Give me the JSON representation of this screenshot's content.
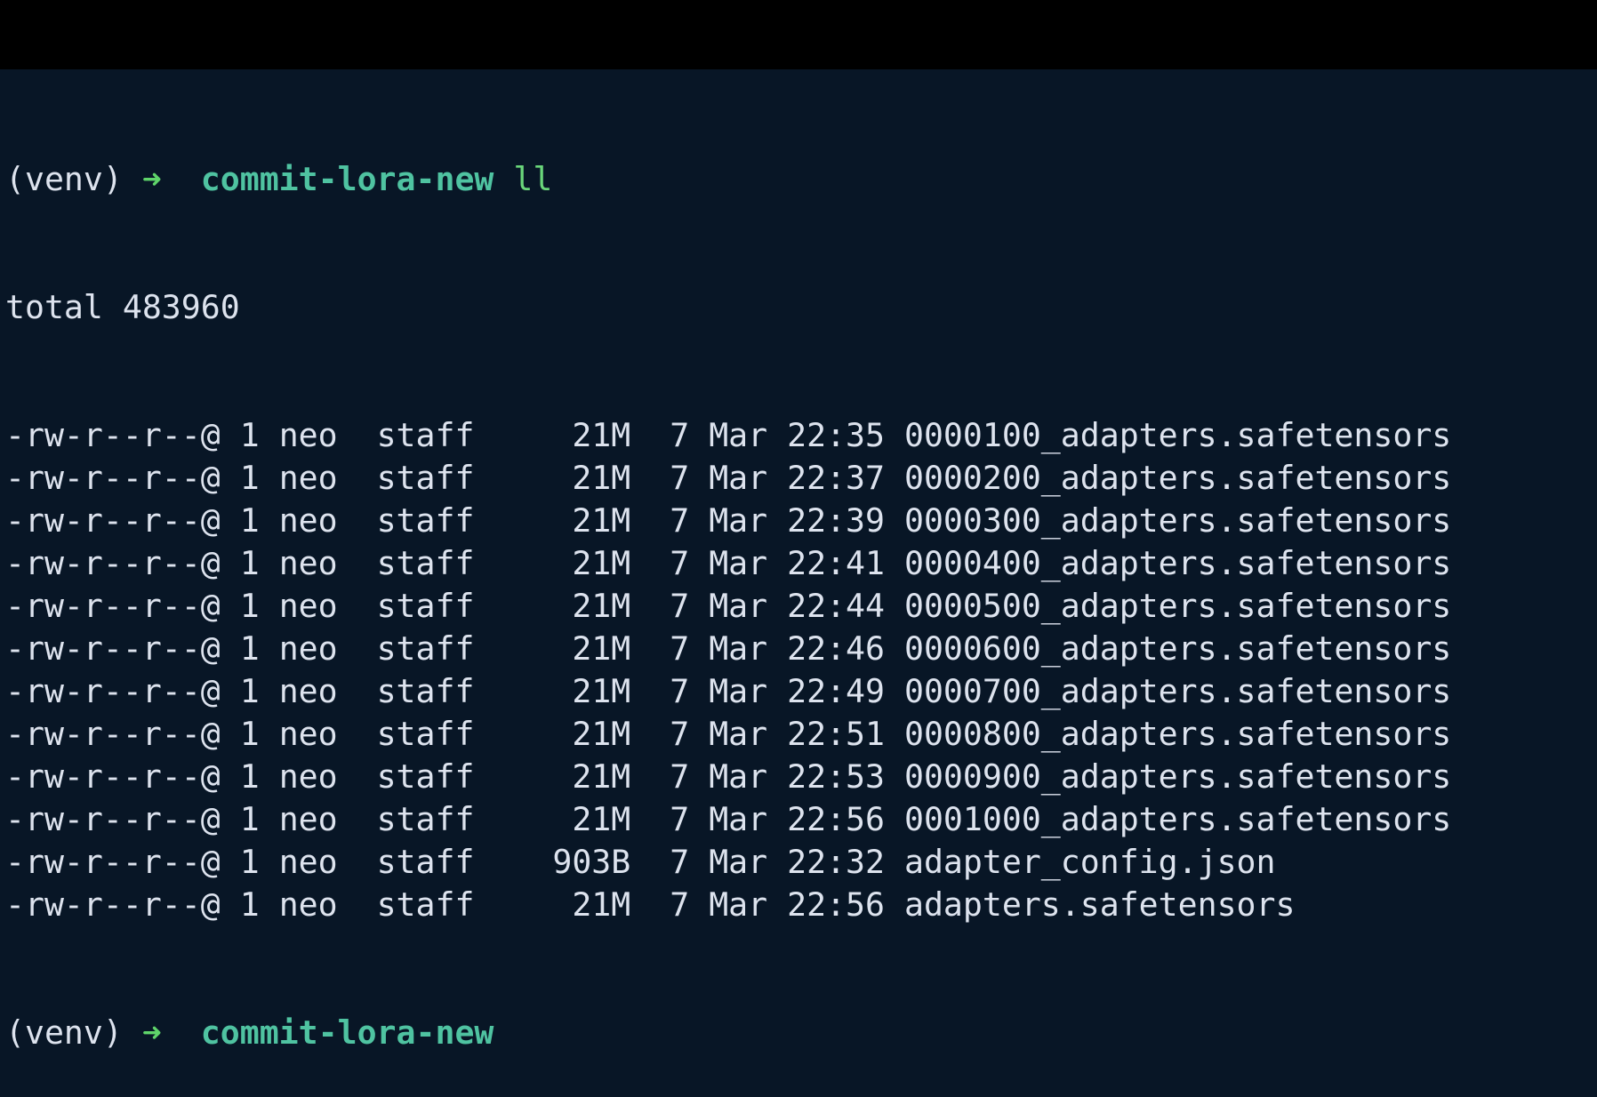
{
  "colors": {
    "background": "#081626",
    "text": "#dde3ee",
    "arrow": "#5fd46a",
    "directory": "#4fc3a1",
    "command": "#6ad67a"
  },
  "prompt1": {
    "venv": "(venv)",
    "arrow_icon": "arrow-right-icon",
    "arrow": "➜",
    "directory": "commit-lora-new",
    "command": "ll"
  },
  "total": "total 483960",
  "files": [
    {
      "perms": "-rw-r--r--@",
      "links": "1",
      "owner": "neo",
      "group": "staff",
      "size": "21M",
      "day": "7",
      "month": "Mar",
      "time": "22:35",
      "name": "0000100_adapters.safetensors"
    },
    {
      "perms": "-rw-r--r--@",
      "links": "1",
      "owner": "neo",
      "group": "staff",
      "size": "21M",
      "day": "7",
      "month": "Mar",
      "time": "22:37",
      "name": "0000200_adapters.safetensors"
    },
    {
      "perms": "-rw-r--r--@",
      "links": "1",
      "owner": "neo",
      "group": "staff",
      "size": "21M",
      "day": "7",
      "month": "Mar",
      "time": "22:39",
      "name": "0000300_adapters.safetensors"
    },
    {
      "perms": "-rw-r--r--@",
      "links": "1",
      "owner": "neo",
      "group": "staff",
      "size": "21M",
      "day": "7",
      "month": "Mar",
      "time": "22:41",
      "name": "0000400_adapters.safetensors"
    },
    {
      "perms": "-rw-r--r--@",
      "links": "1",
      "owner": "neo",
      "group": "staff",
      "size": "21M",
      "day": "7",
      "month": "Mar",
      "time": "22:44",
      "name": "0000500_adapters.safetensors"
    },
    {
      "perms": "-rw-r--r--@",
      "links": "1",
      "owner": "neo",
      "group": "staff",
      "size": "21M",
      "day": "7",
      "month": "Mar",
      "time": "22:46",
      "name": "0000600_adapters.safetensors"
    },
    {
      "perms": "-rw-r--r--@",
      "links": "1",
      "owner": "neo",
      "group": "staff",
      "size": "21M",
      "day": "7",
      "month": "Mar",
      "time": "22:49",
      "name": "0000700_adapters.safetensors"
    },
    {
      "perms": "-rw-r--r--@",
      "links": "1",
      "owner": "neo",
      "group": "staff",
      "size": "21M",
      "day": "7",
      "month": "Mar",
      "time": "22:51",
      "name": "0000800_adapters.safetensors"
    },
    {
      "perms": "-rw-r--r--@",
      "links": "1",
      "owner": "neo",
      "group": "staff",
      "size": "21M",
      "day": "7",
      "month": "Mar",
      "time": "22:53",
      "name": "0000900_adapters.safetensors"
    },
    {
      "perms": "-rw-r--r--@",
      "links": "1",
      "owner": "neo",
      "group": "staff",
      "size": "21M",
      "day": "7",
      "month": "Mar",
      "time": "22:56",
      "name": "0001000_adapters.safetensors"
    },
    {
      "perms": "-rw-r--r--@",
      "links": "1",
      "owner": "neo",
      "group": "staff",
      "size": "903B",
      "day": "7",
      "month": "Mar",
      "time": "22:32",
      "name": "adapter_config.json"
    },
    {
      "perms": "-rw-r--r--@",
      "links": "1",
      "owner": "neo",
      "group": "staff",
      "size": "21M",
      "day": "7",
      "month": "Mar",
      "time": "22:56",
      "name": "adapters.safetensors"
    }
  ],
  "prompt2": {
    "venv": "(venv)",
    "arrow_icon": "arrow-right-icon",
    "arrow": "➜",
    "directory": "commit-lora-new"
  }
}
